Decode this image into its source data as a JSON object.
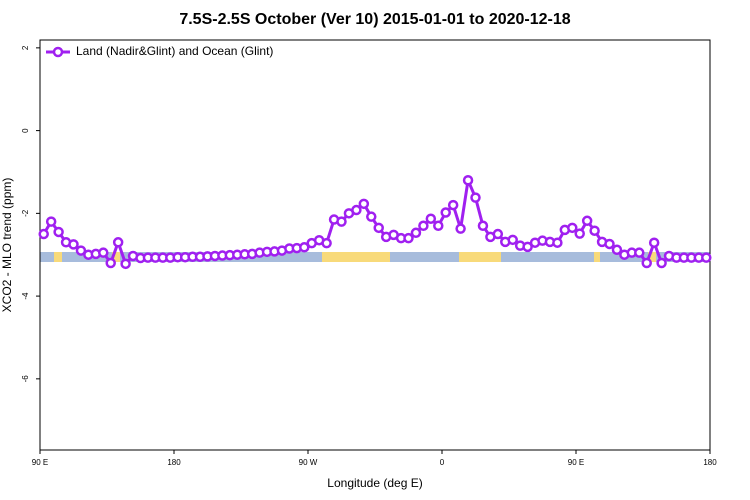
{
  "chart_data": {
    "type": "line",
    "title": "7.5S-2.5S October (Ver 10)   2015-01-01 to 2020-12-18",
    "x_label": "Longitude (deg E)",
    "y_label": "XCO2 - MLO trend (ppm)",
    "legend": "top-left",
    "xlim": [
      90,
      540
    ],
    "xticks": [
      {
        "value": 90,
        "label": "90 E"
      },
      180,
      {
        "value": 270,
        "label": "90 W"
      },
      {
        "value": 360,
        "label": "0"
      },
      {
        "value": 450,
        "label": "90 E"
      },
      {
        "value": 540,
        "label": "180"
      }
    ],
    "ylim": [
      -7.72,
      2.19
    ],
    "yticks": [
      2,
      0,
      -2,
      -4,
      -6
    ],
    "x": [
      92.5,
      97.5,
      102.5,
      107.5,
      112.5,
      117.5,
      122.5,
      127.5,
      132.5,
      137.5,
      142.5,
      147.5,
      152.5,
      157.5,
      162.5,
      167.5,
      172.5,
      177.5,
      182.5,
      187.5,
      192.5,
      197.5,
      202.5,
      207.5,
      212.5,
      217.5,
      222.5,
      227.5,
      232.5,
      237.5,
      242.5,
      247.5,
      252.5,
      257.5,
      262.5,
      267.5,
      272.5,
      277.5,
      282.5,
      287.5,
      292.5,
      297.5,
      302.5,
      307.5,
      312.5,
      317.5,
      322.5,
      327.5,
      332.5,
      337.5,
      342.5,
      347.5,
      352.5,
      357.5,
      362.5,
      367.5,
      372.5,
      377.5,
      382.5,
      387.5,
      392.5,
      397.5,
      402.5,
      407.5,
      412.5,
      417.5,
      422.5,
      427.5,
      432.5,
      437.5,
      442.5,
      447.5,
      452.5,
      457.5,
      462.5,
      467.5,
      472.5,
      477.5,
      482.5,
      487.5,
      492.5,
      497.5,
      502.5,
      507.5,
      512.5,
      517.5,
      522.5,
      527.5,
      532.5,
      537.5
    ],
    "series": [
      {
        "name": "Land (Nadir&Glint) and Ocean (Glint)",
        "color": "#a020f0",
        "values": [
          -2.5,
          -2.2,
          -2.45,
          -2.7,
          -2.75,
          -2.9,
          -3.0,
          -2.98,
          -2.95,
          -3.2,
          -2.7,
          -3.22,
          -3.03,
          -3.08,
          -3.07,
          -3.07,
          -3.07,
          -3.07,
          -3.06,
          -3.06,
          -3.05,
          -3.05,
          -3.04,
          -3.03,
          -3.02,
          -3.01,
          -3.0,
          -2.99,
          -2.98,
          -2.95,
          -2.93,
          -2.92,
          -2.9,
          -2.85,
          -2.84,
          -2.82,
          -2.72,
          -2.65,
          -2.72,
          -2.15,
          -2.2,
          -2.0,
          -1.92,
          -1.77,
          -2.08,
          -2.35,
          -2.57,
          -2.52,
          -2.6,
          -2.6,
          -2.47,
          -2.3,
          -2.13,
          -2.3,
          -1.98,
          -1.8,
          -2.37,
          -1.2,
          -1.62,
          -2.3,
          -2.57,
          -2.5,
          -2.69,
          -2.64,
          -2.78,
          -2.81,
          -2.71,
          -2.66,
          -2.69,
          -2.71,
          -2.4,
          -2.35,
          -2.49,
          -2.18,
          -2.42,
          -2.69,
          -2.74,
          -2.88,
          -3.0,
          -2.95,
          -2.95,
          -3.2,
          -2.71,
          -3.2,
          -3.03,
          -3.07,
          -3.07,
          -3.07,
          -3.07,
          -3.07
        ]
      }
    ]
  }
}
